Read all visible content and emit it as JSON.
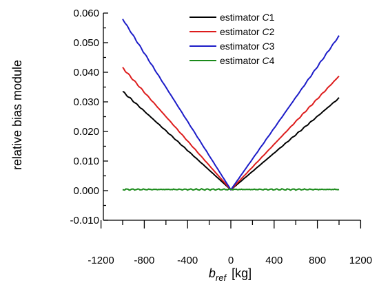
{
  "chart_data": {
    "type": "line",
    "xlabel_main": "b",
    "xlabel_sub": "ref",
    "xlabel_unit": "[kg]",
    "ylabel": "relative bias module",
    "xlim": [
      -1200,
      1200
    ],
    "ylim": [
      -0.01,
      0.06
    ],
    "x_ticks": [
      -1200,
      -800,
      -400,
      0,
      400,
      800,
      1200
    ],
    "x_tick_labels": [
      "-1200",
      "-800",
      "-400",
      "0",
      "400",
      "800",
      "1200"
    ],
    "y_ticks": [
      -0.01,
      0.0,
      0.01,
      0.02,
      0.03,
      0.04,
      0.05,
      0.06
    ],
    "y_tick_labels": [
      "-0.010",
      "0.000",
      "0.010",
      "0.020",
      "0.030",
      "0.040",
      "0.050",
      "0.060"
    ],
    "legend_position": "top-right",
    "series": [
      {
        "name_prefix": "estimator ",
        "name_italic": "C",
        "name_suffix": "1",
        "color": "#000000",
        "x": [
          -1000,
          -500,
          0,
          500,
          1000
        ],
        "y": [
          0.0335,
          0.0168,
          0.0003,
          0.0157,
          0.0313
        ]
      },
      {
        "name_prefix": "estimator ",
        "name_italic": "C",
        "name_suffix": "2",
        "color": "#dd1c1c",
        "x": [
          -1000,
          -500,
          0,
          500,
          1000
        ],
        "y": [
          0.0415,
          0.0208,
          0.0003,
          0.0194,
          0.0387
        ]
      },
      {
        "name_prefix": "estimator ",
        "name_italic": "C",
        "name_suffix": "3",
        "color": "#1c1cc8",
        "x": [
          -1000,
          -500,
          0,
          500,
          1000
        ],
        "y": [
          0.058,
          0.0292,
          0.0003,
          0.0262,
          0.0523
        ]
      },
      {
        "name_prefix": "estimator ",
        "name_italic": "C",
        "name_suffix": "4",
        "color": "#1a8a1a",
        "x": [
          -1000,
          -800,
          -600,
          -400,
          -200,
          0,
          200,
          400,
          600,
          800,
          1000
        ],
        "y": [
          0.0004,
          0.0005,
          0.0003,
          0.0004,
          0.0003,
          0.0004,
          0.0005,
          0.0003,
          0.0004,
          0.0003,
          0.0003
        ]
      }
    ]
  }
}
